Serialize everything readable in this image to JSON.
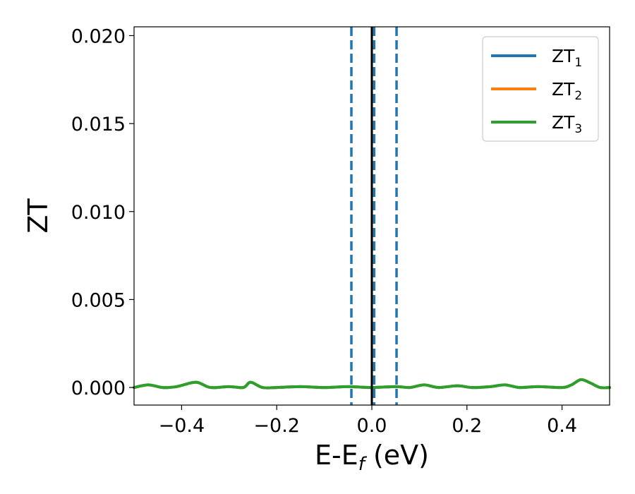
{
  "chart_data": {
    "type": "line",
    "xlabel_main": "E-E",
    "xlabel_sub": "f",
    "xlabel_unit": " (eV)",
    "ylabel": "ZT",
    "xlim": [
      -0.5,
      0.5
    ],
    "ylim": [
      -0.001,
      0.0205
    ],
    "x_ticks": [
      -0.4,
      -0.2,
      0.0,
      0.2,
      0.4
    ],
    "x_tick_labels": [
      "−0.4",
      "−0.2",
      "0.0",
      "0.2",
      "0.4"
    ],
    "y_ticks": [
      0.0,
      0.005,
      0.01,
      0.015,
      0.02
    ],
    "y_tick_labels": [
      "0.000",
      "0.005",
      "0.010",
      "0.015",
      "0.020"
    ],
    "grid": false,
    "legend_position": "top-right",
    "series": [
      {
        "name": "ZT",
        "subscript": "1",
        "color": "#1f77b4",
        "x": [
          -0.5,
          -0.47,
          -0.44,
          -0.41,
          -0.37,
          -0.34,
          -0.3,
          -0.27,
          -0.255,
          -0.23,
          -0.2,
          -0.15,
          -0.1,
          -0.05,
          0.0,
          0.05,
          0.08,
          0.11,
          0.14,
          0.18,
          0.21,
          0.25,
          0.28,
          0.31,
          0.35,
          0.4,
          0.42,
          0.44,
          0.46,
          0.48,
          0.5
        ],
        "y": [
          0.0,
          0.00015,
          0.0,
          5e-05,
          0.0003,
          0.0,
          5e-05,
          0.0,
          0.0003,
          0.0,
          0.0,
          5e-05,
          0.0,
          5e-05,
          0.0,
          5e-05,
          0.0,
          0.00015,
          0.0,
          0.0001,
          0.0,
          5e-05,
          0.00015,
          0.0,
          5e-05,
          0.0,
          0.00015,
          0.00045,
          0.00025,
          0.0,
          0.0
        ]
      },
      {
        "name": "ZT",
        "subscript": "2",
        "color": "#ff7f0e",
        "x": [
          -0.5,
          -0.47,
          -0.44,
          -0.41,
          -0.37,
          -0.34,
          -0.3,
          -0.27,
          -0.255,
          -0.23,
          -0.2,
          -0.15,
          -0.1,
          -0.05,
          0.0,
          0.05,
          0.08,
          0.11,
          0.14,
          0.18,
          0.21,
          0.25,
          0.28,
          0.31,
          0.35,
          0.4,
          0.42,
          0.44,
          0.46,
          0.48,
          0.5
        ],
        "y": [
          0.0,
          0.00015,
          0.0,
          5e-05,
          0.0003,
          0.0,
          5e-05,
          0.0,
          0.0003,
          0.0,
          0.0,
          5e-05,
          0.0,
          5e-05,
          0.0,
          5e-05,
          0.0,
          0.00015,
          0.0,
          0.0001,
          0.0,
          5e-05,
          0.00015,
          0.0,
          5e-05,
          0.0,
          0.00015,
          0.00045,
          0.00025,
          0.0,
          0.0
        ]
      },
      {
        "name": "ZT",
        "subscript": "3",
        "color": "#2ca02c",
        "x": [
          -0.5,
          -0.47,
          -0.44,
          -0.41,
          -0.37,
          -0.34,
          -0.3,
          -0.27,
          -0.255,
          -0.23,
          -0.2,
          -0.15,
          -0.1,
          -0.05,
          0.0,
          0.05,
          0.08,
          0.11,
          0.14,
          0.18,
          0.21,
          0.25,
          0.28,
          0.31,
          0.35,
          0.4,
          0.42,
          0.44,
          0.46,
          0.48,
          0.5
        ],
        "y": [
          0.0,
          0.00015,
          0.0,
          5e-05,
          0.0003,
          0.0,
          5e-05,
          0.0,
          0.0003,
          0.0,
          0.0,
          5e-05,
          0.0,
          5e-05,
          0.0,
          5e-05,
          0.0,
          0.00015,
          0.0,
          0.0001,
          0.0,
          5e-05,
          0.00015,
          0.0,
          5e-05,
          0.0,
          0.00015,
          0.00045,
          0.00025,
          0.0,
          0.0
        ]
      }
    ],
    "vertical_lines": [
      {
        "x": -0.043,
        "style": "dashed",
        "color": "#1f77b4"
      },
      {
        "x": 0.0,
        "style": "solid",
        "color": "#000000"
      },
      {
        "x": 0.005,
        "style": "dashed",
        "color": "#1f77b4"
      },
      {
        "x": 0.052,
        "style": "dashed",
        "color": "#1f77b4"
      }
    ]
  }
}
